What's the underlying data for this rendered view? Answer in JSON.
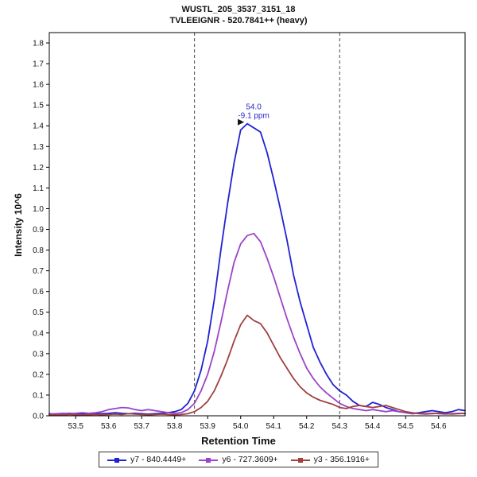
{
  "chart_data": {
    "type": "line",
    "title": "WUSTL_205_3537_3151_18",
    "subtitle": "TVLEEIGNR - 520.7841++ (heavy)",
    "xlabel": "Retention Time",
    "ylabel": "Intensity 10^6",
    "xlim": [
      53.42,
      54.68
    ],
    "ylim": [
      0,
      1.85
    ],
    "xticks": [
      53.5,
      53.6,
      53.7,
      53.8,
      53.9,
      54.0,
      54.1,
      54.2,
      54.3,
      54.4,
      54.5,
      54.6
    ],
    "yticks": [
      0.0,
      0.1,
      0.2,
      0.3,
      0.4,
      0.5,
      0.6,
      0.7,
      0.8,
      0.9,
      1.0,
      1.1,
      1.2,
      1.3,
      1.4,
      1.5,
      1.6,
      1.7,
      1.8
    ],
    "grid": false,
    "legend_position": "bottom",
    "boundary_color": "#4a4a4a",
    "integration_boundaries": [
      53.86,
      54.3
    ],
    "peak_annotation": {
      "x": 54.02,
      "y": 1.41,
      "label_rt": "54.0",
      "label_ppm": "-9.1 ppm",
      "color": "#2828c8"
    },
    "x": [
      53.42,
      53.44,
      53.46,
      53.48,
      53.5,
      53.52,
      53.54,
      53.56,
      53.58,
      53.6,
      53.62,
      53.64,
      53.66,
      53.68,
      53.7,
      53.72,
      53.74,
      53.76,
      53.78,
      53.8,
      53.82,
      53.84,
      53.86,
      53.88,
      53.9,
      53.92,
      53.94,
      53.96,
      53.98,
      54.0,
      54.02,
      54.04,
      54.06,
      54.08,
      54.1,
      54.12,
      54.14,
      54.16,
      54.18,
      54.2,
      54.22,
      54.24,
      54.26,
      54.28,
      54.3,
      54.32,
      54.34,
      54.36,
      54.38,
      54.4,
      54.42,
      54.44,
      54.46,
      54.48,
      54.5,
      54.52,
      54.54,
      54.56,
      54.58,
      54.6,
      54.62,
      54.64,
      54.66,
      54.68
    ],
    "series": [
      {
        "name": "y7 - 840.4449+",
        "color": "#2121d4",
        "values": [
          0.01,
          0.008,
          0.01,
          0.012,
          0.01,
          0.008,
          0.01,
          0.012,
          0.01,
          0.012,
          0.015,
          0.012,
          0.01,
          0.012,
          0.01,
          0.008,
          0.01,
          0.012,
          0.015,
          0.02,
          0.03,
          0.06,
          0.12,
          0.22,
          0.36,
          0.56,
          0.8,
          1.02,
          1.22,
          1.38,
          1.41,
          1.39,
          1.37,
          1.27,
          1.14,
          1.0,
          0.85,
          0.68,
          0.55,
          0.44,
          0.33,
          0.26,
          0.2,
          0.15,
          0.12,
          0.1,
          0.07,
          0.05,
          0.045,
          0.065,
          0.055,
          0.04,
          0.03,
          0.02,
          0.015,
          0.01,
          0.015,
          0.02,
          0.025,
          0.02,
          0.015,
          0.02,
          0.03,
          0.025
        ]
      },
      {
        "name": "y6 - 727.3609+",
        "color": "#9c43c8",
        "values": [
          0.008,
          0.01,
          0.012,
          0.01,
          0.012,
          0.015,
          0.012,
          0.015,
          0.02,
          0.03,
          0.035,
          0.04,
          0.038,
          0.03,
          0.025,
          0.03,
          0.025,
          0.02,
          0.015,
          0.012,
          0.015,
          0.03,
          0.06,
          0.12,
          0.2,
          0.31,
          0.45,
          0.6,
          0.74,
          0.83,
          0.87,
          0.88,
          0.84,
          0.76,
          0.67,
          0.57,
          0.47,
          0.38,
          0.3,
          0.23,
          0.18,
          0.14,
          0.11,
          0.085,
          0.06,
          0.045,
          0.035,
          0.03,
          0.025,
          0.03,
          0.025,
          0.02,
          0.025,
          0.02,
          0.015,
          0.01,
          0.012,
          0.01,
          0.012,
          0.01,
          0.008,
          0.01,
          0.012,
          0.01
        ]
      },
      {
        "name": "y3 - 356.1916+",
        "color": "#a04040",
        "values": [
          0.004,
          0.005,
          0.004,
          0.006,
          0.005,
          0.004,
          0.005,
          0.006,
          0.005,
          0.006,
          0.008,
          0.006,
          0.01,
          0.008,
          0.006,
          0.005,
          0.006,
          0.008,
          0.006,
          0.005,
          0.006,
          0.01,
          0.02,
          0.04,
          0.07,
          0.12,
          0.19,
          0.27,
          0.36,
          0.44,
          0.485,
          0.46,
          0.445,
          0.4,
          0.34,
          0.28,
          0.23,
          0.18,
          0.14,
          0.11,
          0.09,
          0.075,
          0.065,
          0.055,
          0.04,
          0.035,
          0.045,
          0.05,
          0.045,
          0.04,
          0.045,
          0.05,
          0.04,
          0.03,
          0.02,
          0.015,
          0.01,
          0.008,
          0.01,
          0.012,
          0.01,
          0.008,
          0.01,
          0.012
        ]
      }
    ]
  }
}
